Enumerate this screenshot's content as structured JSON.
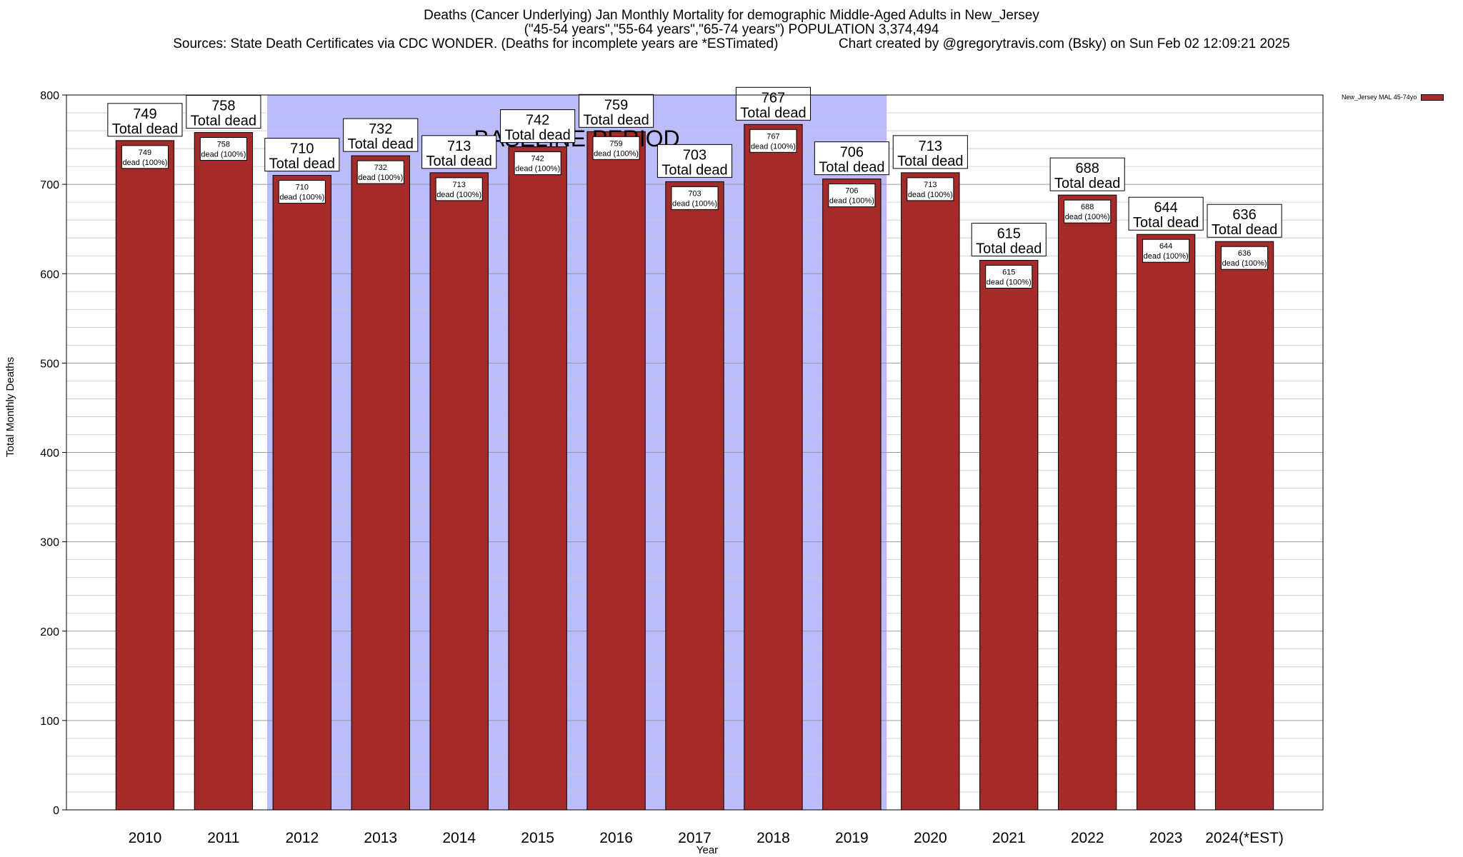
{
  "title": {
    "line1": "Deaths (Cancer Underlying) Jan Monthly Mortality for demographic Middle-Aged Adults in New_Jersey",
    "line2": "(\"45-54 years\",\"55-64 years\",\"65-74 years\") POPULATION 3,374,494",
    "line3": "Sources: State Death Certificates via CDC WONDER. (Deaths for incomplete years are *ESTimated)                Chart created by @gregorytravis.com (Bsky) on Sun Feb 02 12:09:21 2025"
  },
  "chart_data": {
    "type": "bar",
    "xlabel": "Year",
    "ylabel": "Total Monthly Deaths",
    "ylim": [
      0,
      800
    ],
    "yticks": [
      0,
      100,
      200,
      300,
      400,
      500,
      600,
      700,
      800
    ],
    "grid": true,
    "legend_position": "top-right",
    "baseline_label": "BASELINE PERIOD",
    "baseline_range": [
      "2012",
      "2019"
    ],
    "categories": [
      "2010",
      "2011",
      "2012",
      "2013",
      "2014",
      "2015",
      "2016",
      "2017",
      "2018",
      "2019",
      "2020",
      "2021",
      "2022",
      "2023",
      "2024(*EST)"
    ],
    "series": [
      {
        "name": "New_Jersey MAL 45-74yo",
        "color": "#a52a2a",
        "values": [
          749,
          758,
          710,
          732,
          713,
          742,
          759,
          703,
          767,
          706,
          713,
          615,
          688,
          644,
          636
        ]
      }
    ],
    "top_label_suffix": "Total dead",
    "inner_label_suffix": "dead (100%)"
  },
  "colors": {
    "bar": "#a52a2a",
    "baseline_shade": "#bcbcfc",
    "grid": "#c8c8c8"
  }
}
